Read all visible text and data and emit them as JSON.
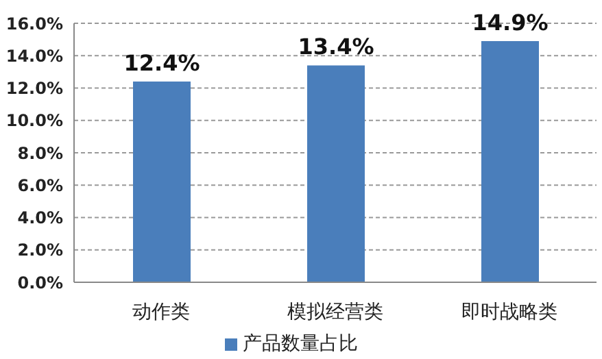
{
  "chart_data": {
    "type": "bar",
    "categories": [
      "动作类",
      "模拟经营类",
      "即时战略类"
    ],
    "series": [
      {
        "name": "产品数量占比",
        "color": "#4a7ebb",
        "values": [
          12.4,
          13.4,
          14.9
        ],
        "value_labels": [
          "12.4%",
          "13.4%",
          "14.9%"
        ]
      }
    ],
    "ylim": [
      0,
      16
    ],
    "yticks": [
      {
        "value": 0,
        "label": "0.0%"
      },
      {
        "value": 2,
        "label": "2.0%"
      },
      {
        "value": 4,
        "label": "4.0%"
      },
      {
        "value": 6,
        "label": "6.0%"
      },
      {
        "value": 8,
        "label": "8.0%"
      },
      {
        "value": 10,
        "label": "10.0%"
      },
      {
        "value": 12,
        "label": "12.0%"
      },
      {
        "value": 14,
        "label": "14.0%"
      },
      {
        "value": 16,
        "label": "16.0%"
      }
    ],
    "grid": "y",
    "legend": "bottom"
  }
}
